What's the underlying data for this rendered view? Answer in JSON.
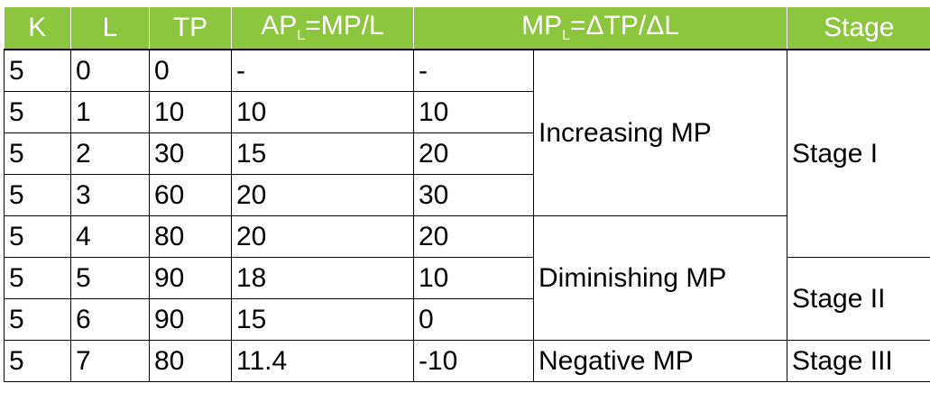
{
  "headers": {
    "k": "K",
    "l": "L",
    "tp": "TP",
    "ap_main": "AP",
    "ap_sub": "L",
    "ap_rest": "=MP/L",
    "mp_main": "MP",
    "mp_sub": "L",
    "mp_rest": "=ΔTP/ΔL",
    "stage": "Stage"
  },
  "rows": [
    {
      "k": "5",
      "l": "0",
      "tp": "0",
      "ap": "-",
      "mp": "-"
    },
    {
      "k": "5",
      "l": "1",
      "tp": "10",
      "ap": "10",
      "mp": "10"
    },
    {
      "k": "5",
      "l": "2",
      "tp": "30",
      "ap": "15",
      "mp": "20"
    },
    {
      "k": "5",
      "l": "3",
      "tp": "60",
      "ap": "20",
      "mp": "30"
    },
    {
      "k": "5",
      "l": "4",
      "tp": "80",
      "ap": "20",
      "mp": "20"
    },
    {
      "k": "5",
      "l": "5",
      "tp": "90",
      "ap": "18",
      "mp": "10"
    },
    {
      "k": "5",
      "l": "6",
      "tp": "90",
      "ap": "15",
      "mp": "0"
    },
    {
      "k": "5",
      "l": "7",
      "tp": "80",
      "ap": "11.4",
      "mp": "-10"
    }
  ],
  "mp_phases": {
    "increasing": "Increasing MP",
    "diminishing": "Diminishing MP",
    "negative": "Negative MP"
  },
  "stages": {
    "one": "Stage I",
    "two": "Stage II",
    "three": "Stage III"
  },
  "colors": {
    "header_bg": "#8cc63f",
    "header_text": "#ffffff",
    "border": "#000000"
  }
}
